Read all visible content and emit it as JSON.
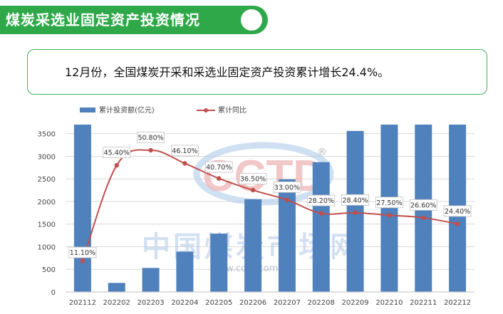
{
  "header": {
    "title": "煤炭采选业固定资产投资情况"
  },
  "summary": {
    "text": "12月份，全国煤炭开采和采选业固定资产投资累计增长24.4%。"
  },
  "watermark": {
    "logo_text": "CCTD",
    "registered": "®",
    "cn_text": "中国煤炭市场网",
    "url_text": "www.cctd.com.cn"
  },
  "colors": {
    "bar": "#4f81bd",
    "line": "#c0504d",
    "banner": "#2fa84a"
  },
  "chart_data": {
    "type": "bar+line",
    "categories": [
      "202112",
      "202202",
      "202203",
      "202204",
      "202205",
      "202206",
      "202207",
      "202208",
      "202209",
      "202210",
      "202211",
      "202212"
    ],
    "series": [
      {
        "name": "累计投资额(亿元)",
        "type": "bar",
        "axis": "left",
        "values": [
          3700,
          200,
          530,
          890,
          1290,
          2050,
          2490,
          2870,
          3560,
          3700,
          3700,
          3700
        ]
      },
      {
        "name": "累计同比",
        "type": "line",
        "axis": "right",
        "values": [
          11.1,
          45.4,
          50.8,
          46.1,
          40.7,
          36.5,
          33.0,
          28.2,
          28.4,
          27.5,
          26.6,
          24.4
        ],
        "labels": [
          "11.10%",
          "45.40%",
          "50.80%",
          "46.10%",
          "40.70%",
          "36.50%",
          "33.00%",
          "28.20%",
          "28.40%",
          "27.50%",
          "26.60%",
          "24.40%"
        ]
      }
    ],
    "y_ticks": [
      "0",
      "500",
      "1000",
      "1500",
      "2000",
      "2500",
      "3000",
      "3500"
    ],
    "ylim": [
      0,
      3700
    ],
    "y2lim": [
      0,
      60
    ],
    "grid": true,
    "legend_position": "top-left"
  }
}
